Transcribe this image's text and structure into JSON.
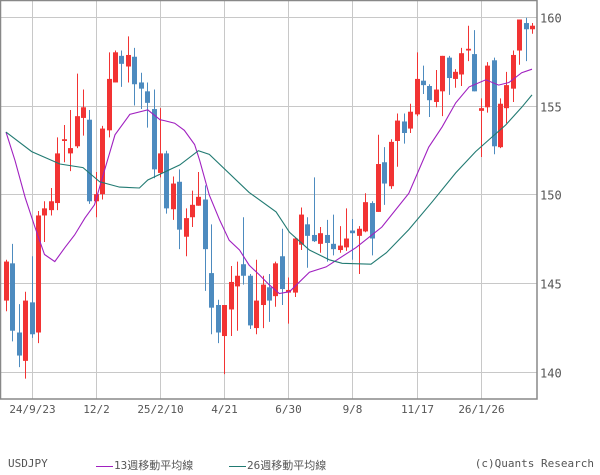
{
  "chart_data": {
    "type": "candlestick",
    "symbol": "USDJPY",
    "period": "weekly",
    "ylim": [
      138.45,
      160.95
    ],
    "yticks": [
      140,
      145,
      150,
      155,
      160
    ],
    "grid": true,
    "axis_position": "right",
    "x_tick_labels": [
      {
        "index": 4,
        "label": "24/9/23"
      },
      {
        "index": 14,
        "label": "12/2"
      },
      {
        "index": 24,
        "label": "25/2/10"
      },
      {
        "index": 34,
        "label": "4/21"
      },
      {
        "index": 44,
        "label": "6/30"
      },
      {
        "index": 54,
        "label": "9/8"
      },
      {
        "index": 64,
        "label": "11/17"
      },
      {
        "index": 74,
        "label": "26/1/26"
      }
    ],
    "ohlc_columns": [
      "open",
      "high",
      "low",
      "close"
    ],
    "ohlc": [
      [
        144.0,
        146.3,
        143.4,
        146.2
      ],
      [
        146.1,
        147.2,
        141.7,
        142.3
      ],
      [
        142.2,
        143.8,
        140.25,
        140.9
      ],
      [
        140.6,
        144.5,
        139.6,
        144.0
      ],
      [
        143.9,
        146.5,
        141.9,
        142.1
      ],
      [
        142.2,
        149.05,
        141.6,
        148.8
      ],
      [
        148.8,
        149.6,
        147.3,
        149.2
      ],
      [
        149.1,
        150.35,
        148.8,
        149.6
      ],
      [
        149.5,
        153.2,
        149.1,
        152.3
      ],
      [
        153.0,
        153.9,
        151.8,
        153.1
      ],
      [
        152.3,
        154.75,
        151.3,
        152.6
      ],
      [
        152.7,
        156.8,
        152.6,
        154.4
      ],
      [
        154.3,
        155.9,
        153.3,
        154.9
      ],
      [
        154.2,
        154.75,
        149.45,
        149.6
      ],
      [
        149.6,
        151.25,
        148.7,
        150.0
      ],
      [
        150.0,
        153.85,
        149.7,
        153.7
      ],
      [
        153.6,
        158.0,
        153.2,
        156.5
      ],
      [
        156.3,
        158.1,
        156.3,
        158.0
      ],
      [
        157.8,
        158.1,
        156.05,
        157.35
      ],
      [
        157.2,
        158.9,
        156.3,
        157.85
      ],
      [
        157.75,
        158.25,
        155.0,
        156.2
      ],
      [
        156.3,
        156.85,
        154.8,
        155.95
      ],
      [
        155.8,
        156.3,
        153.75,
        155.15
      ],
      [
        154.8,
        155.9,
        150.9,
        151.4
      ],
      [
        151.2,
        154.85,
        150.95,
        152.3
      ],
      [
        152.3,
        152.45,
        148.9,
        149.2
      ],
      [
        149.15,
        151.0,
        148.55,
        150.6
      ],
      [
        150.7,
        151.4,
        146.9,
        148.0
      ],
      [
        147.6,
        149.2,
        146.5,
        148.65
      ],
      [
        148.7,
        150.2,
        148.15,
        149.4
      ],
      [
        149.35,
        151.25,
        149.35,
        149.85
      ],
      [
        149.7,
        150.5,
        144.55,
        146.9
      ],
      [
        145.55,
        148.3,
        142.1,
        143.6
      ],
      [
        143.75,
        144.05,
        141.6,
        142.2
      ],
      [
        142.0,
        143.75,
        139.85,
        143.75
      ],
      [
        143.5,
        145.95,
        142.0,
        145.05
      ],
      [
        144.8,
        146.2,
        142.3,
        145.4
      ],
      [
        146.05,
        148.7,
        144.9,
        145.4
      ],
      [
        145.4,
        145.5,
        142.4,
        142.6
      ],
      [
        142.45,
        146.3,
        142.1,
        144.0
      ],
      [
        143.75,
        145.4,
        142.45,
        144.9
      ],
      [
        144.75,
        145.5,
        142.8,
        144.0
      ],
      [
        144.25,
        146.2,
        143.65,
        146.1
      ],
      [
        146.5,
        148.05,
        143.75,
        144.65
      ],
      [
        144.45,
        145.3,
        142.7,
        144.6
      ],
      [
        144.45,
        147.55,
        144.2,
        147.5
      ],
      [
        147.15,
        149.25,
        146.85,
        148.85
      ],
      [
        148.3,
        148.7,
        145.85,
        147.65
      ],
      [
        147.7,
        150.95,
        147.3,
        147.35
      ],
      [
        147.2,
        148.15,
        146.7,
        147.8
      ],
      [
        147.7,
        148.55,
        146.2,
        147.25
      ],
      [
        147.2,
        148.85,
        146.55,
        146.9
      ],
      [
        146.85,
        148.2,
        146.7,
        147.1
      ],
      [
        147.0,
        149.2,
        146.8,
        147.5
      ],
      [
        147.95,
        148.6,
        146.3,
        147.8
      ],
      [
        147.65,
        148.2,
        145.5,
        148.05
      ],
      [
        147.9,
        150.05,
        147.85,
        149.55
      ],
      [
        149.5,
        149.6,
        146.55,
        147.5
      ],
      [
        149.0,
        153.35,
        149.0,
        151.7
      ],
      [
        151.8,
        152.65,
        149.4,
        150.6
      ],
      [
        150.45,
        153.1,
        150.3,
        152.95
      ],
      [
        153.0,
        154.55,
        151.55,
        154.15
      ],
      [
        154.1,
        154.55,
        152.85,
        153.45
      ],
      [
        153.7,
        155.1,
        153.45,
        154.65
      ],
      [
        154.5,
        158.0,
        154.4,
        156.5
      ],
      [
        156.4,
        157.25,
        155.65,
        156.15
      ],
      [
        156.1,
        156.2,
        154.35,
        155.3
      ],
      [
        155.2,
        157.0,
        154.9,
        155.9
      ],
      [
        155.8,
        157.8,
        154.4,
        157.8
      ],
      [
        157.7,
        157.8,
        155.6,
        156.55
      ],
      [
        156.5,
        157.05,
        156.0,
        156.9
      ],
      [
        156.75,
        158.25,
        156.1,
        157.95
      ],
      [
        158.1,
        159.5,
        157.5,
        158.2
      ],
      [
        157.9,
        159.25,
        155.8,
        155.8
      ],
      [
        154.7,
        155.4,
        152.1,
        154.85
      ],
      [
        154.9,
        157.45,
        154.6,
        157.25
      ],
      [
        157.55,
        157.7,
        152.25,
        152.7
      ],
      [
        152.65,
        155.4,
        152.6,
        155.1
      ],
      [
        154.85,
        156.9,
        154.0,
        156.15
      ],
      [
        155.95,
        158.1,
        155.2,
        157.85
      ],
      [
        158.1,
        159.85,
        157.3,
        159.85
      ],
      [
        159.65,
        159.95,
        157.5,
        159.3
      ],
      [
        159.3,
        159.65,
        159.05,
        159.5
      ]
    ],
    "series": [
      {
        "name": "13週移動平均線",
        "color": "#a020c0",
        "points": [
          [
            0,
            153.5
          ],
          [
            1.4,
            151.9
          ],
          [
            3,
            149.8
          ],
          [
            4.5,
            148.15
          ],
          [
            6,
            146.6
          ],
          [
            7.6,
            146.2
          ],
          [
            9.2,
            147.0
          ],
          [
            10.7,
            147.7
          ],
          [
            12.3,
            148.65
          ],
          [
            13.8,
            149.4
          ],
          [
            15.4,
            151.4
          ],
          [
            17,
            153.35
          ],
          [
            19.3,
            154.5
          ],
          [
            22.1,
            154.75
          ],
          [
            24,
            154.2
          ],
          [
            24.7,
            154.15
          ],
          [
            26.3,
            154.0
          ],
          [
            27.8,
            153.6
          ],
          [
            29.4,
            152.8
          ],
          [
            30.2,
            151.9
          ],
          [
            31.7,
            149.95
          ],
          [
            33.3,
            148.55
          ],
          [
            34.8,
            147.4
          ],
          [
            36.4,
            146.85
          ],
          [
            37.9,
            146.0
          ],
          [
            39.5,
            145.45
          ],
          [
            41,
            144.9
          ],
          [
            42.6,
            144.4
          ],
          [
            44.2,
            144.5
          ],
          [
            47.3,
            145.6
          ],
          [
            49.9,
            145.9
          ],
          [
            54.6,
            147.0
          ],
          [
            58.6,
            148.15
          ],
          [
            62.8,
            150.05
          ],
          [
            65.9,
            152.65
          ],
          [
            68,
            153.8
          ],
          [
            70.1,
            155.15
          ],
          [
            72.2,
            156.05
          ],
          [
            74.8,
            156.45
          ],
          [
            76.8,
            156.15
          ],
          [
            78.4,
            156.3
          ],
          [
            80.4,
            156.85
          ],
          [
            82,
            157.05
          ]
        ]
      },
      {
        "name": "26週移動平均線",
        "color": "#217a72",
        "points": [
          [
            0,
            153.5
          ],
          [
            4,
            152.4
          ],
          [
            8.4,
            151.7
          ],
          [
            12,
            151.5
          ],
          [
            14.6,
            150.7
          ],
          [
            17.7,
            150.4
          ],
          [
            20.8,
            150.35
          ],
          [
            22.1,
            150.8
          ],
          [
            27.1,
            151.65
          ],
          [
            30,
            152.45
          ],
          [
            31.7,
            152.25
          ],
          [
            37.9,
            150.1
          ],
          [
            42.1,
            149.0
          ],
          [
            44.2,
            147.85
          ],
          [
            47.3,
            146.85
          ],
          [
            50.4,
            146.3
          ],
          [
            52.4,
            146.1
          ],
          [
            56.9,
            146.05
          ],
          [
            59.3,
            146.7
          ],
          [
            62.8,
            148.0
          ],
          [
            66.4,
            149.55
          ],
          [
            70.1,
            151.2
          ],
          [
            73.2,
            152.4
          ],
          [
            75.7,
            153.2
          ],
          [
            77.9,
            153.9
          ],
          [
            80.4,
            154.9
          ],
          [
            82,
            155.6
          ]
        ]
      }
    ],
    "colors": {
      "up": "#f23333",
      "down": "#4d8bbf",
      "grid": "#c8c8c8",
      "frame": "#888888",
      "text": "#555555"
    }
  },
  "legend": {
    "symbol": "USDJPY",
    "ma13": "13週移動平均線",
    "ma26": "26週移動平均線",
    "credit": "(c)Quants Research"
  }
}
